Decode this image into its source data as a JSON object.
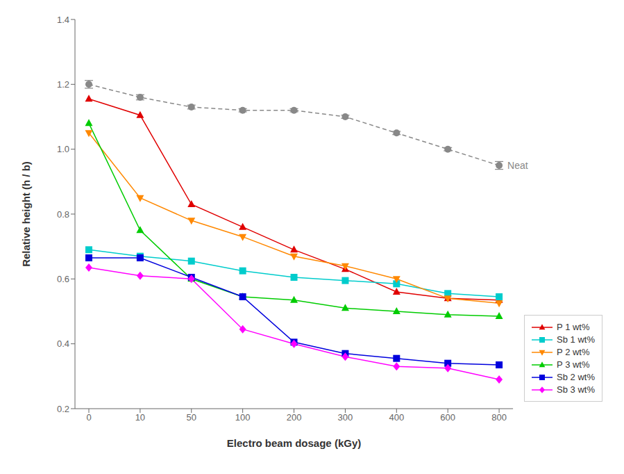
{
  "chart_data": {
    "type": "line",
    "x_label": "Electro beam dosage (kGy)",
    "y_label": "Relative height (h / b)",
    "categories": [
      "0",
      "10",
      "50",
      "100",
      "200",
      "300",
      "400",
      "600",
      "800"
    ],
    "series": [
      {
        "color": "#888888",
        "marker": "circle",
        "line_style": "dashed",
        "values": [
          1.2,
          1.16,
          1.13,
          1.12,
          1.12,
          1.1,
          1.05,
          1.0,
          0.95
        ],
        "errors": [
          0.012,
          0.008,
          0.006,
          0.005,
          0.005,
          0.005,
          0.005,
          0.005,
          0.012
        ]
      },
      {
        "name": "P 1 wt%",
        "color": "#e00000",
        "marker": "triangle",
        "line_style": "solid",
        "values": [
          1.155,
          1.105,
          0.83,
          0.76,
          0.69,
          0.63,
          0.56,
          0.54,
          0.535
        ]
      },
      {
        "name": "Sb 1 wt%",
        "color": "#00cccc",
        "marker": "square",
        "line_style": "solid",
        "values": [
          0.69,
          0.67,
          0.655,
          0.625,
          0.605,
          0.595,
          0.585,
          0.555,
          0.545
        ]
      },
      {
        "name": "P 2 wt%",
        "color": "#ff8800",
        "marker": "triangle-down",
        "line_style": "solid",
        "values": [
          1.05,
          0.85,
          0.78,
          0.73,
          0.67,
          0.64,
          0.6,
          0.54,
          0.525
        ]
      },
      {
        "name": "P 3 wt%",
        "color": "#00cc00",
        "marker": "triangle",
        "line_style": "solid",
        "values": [
          1.08,
          0.75,
          0.6,
          0.545,
          0.535,
          0.51,
          0.5,
          0.49,
          0.485
        ]
      },
      {
        "name": "Sb 2 wt%",
        "color": "#0000dd",
        "marker": "square",
        "line_style": "solid",
        "values": [
          0.665,
          0.665,
          0.605,
          0.545,
          0.405,
          0.37,
          0.355,
          0.34,
          0.335
        ]
      },
      {
        "name": "Sb 3 wt%",
        "color": "#ff00ff",
        "marker": "diamond",
        "line_style": "solid",
        "values": [
          0.635,
          0.61,
          0.6,
          0.445,
          0.4,
          0.36,
          0.33,
          0.325,
          0.29
        ]
      }
    ],
    "annotations": [
      {
        "text": "Neat",
        "x": "800",
        "y": 0.95
      }
    ],
    "ylim": [
      0.2,
      1.4
    ],
    "yticks": [
      0.2,
      0.4,
      0.6,
      0.8,
      {
        "value": 1,
        "label": "1.0"
      },
      1.2,
      1.4
    ],
    "grid": false,
    "legend": "lower right"
  }
}
